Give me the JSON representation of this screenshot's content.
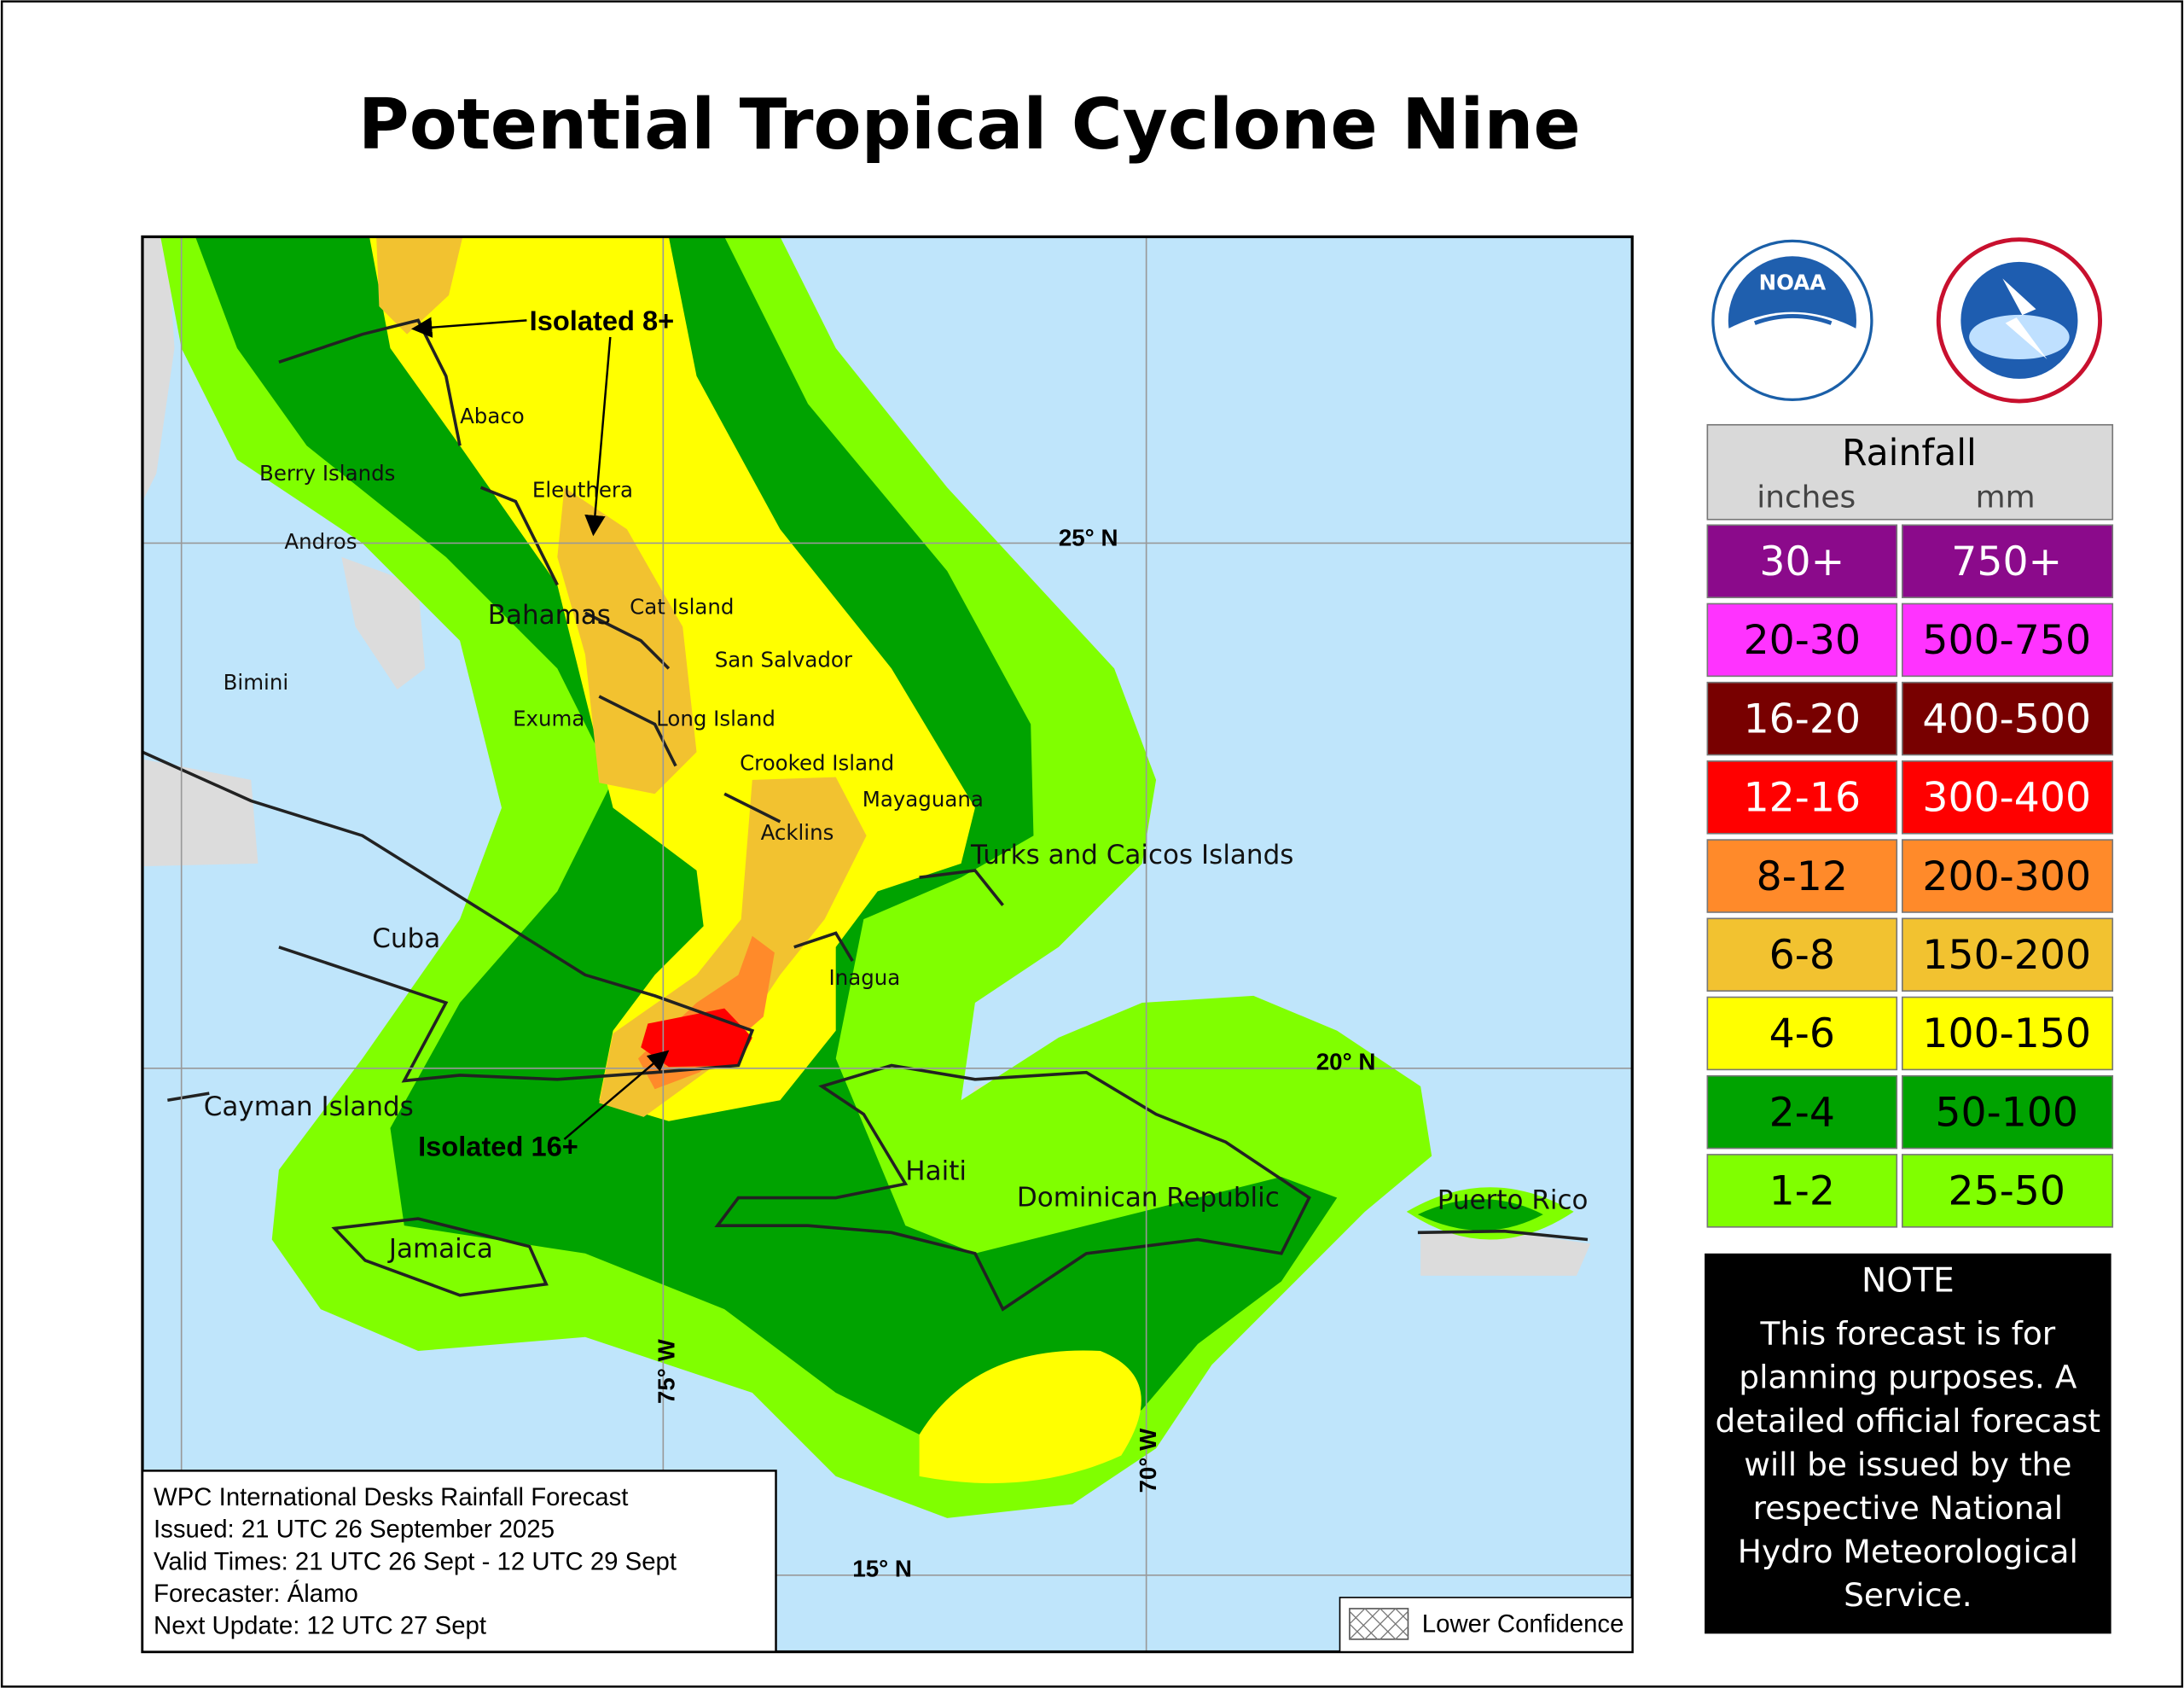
{
  "title": "Potential Tropical Cyclone Nine",
  "map": {
    "places": [
      "Abaco",
      "Berry Islands",
      "Eleuthera",
      "Andros",
      "Bahamas",
      "Cat Island",
      "San Salvador",
      "Bimini",
      "Exuma",
      "Long Island",
      "Crooked Island",
      "Mayaguana",
      "Acklins",
      "Turks and Caicos Islands",
      "Cuba",
      "Inagua",
      "Cayman Islands",
      "Haiti",
      "Dominican Republic",
      "Puerto Rico",
      "Jamaica"
    ],
    "grid_labels": [
      "25° N",
      "20° N",
      "15° N",
      "75° W",
      "70° W"
    ],
    "annotations": [
      "Isolated 8+",
      "Isolated 16+"
    ],
    "info": [
      "WPC International Desks Rainfall Forecast",
      "Issued: 21 UTC 26 September 2025",
      "Valid Times: 21 UTC 26 Sept - 12 UTC 29 Sept",
      "Forecaster: Álamo",
      "Next Update: 12 UTC 27 Sept"
    ],
    "lower_confidence": "Lower Confidence"
  },
  "logos": {
    "noaa": "NOAA"
  },
  "legend": {
    "title": "Rainfall",
    "units": [
      "inches",
      "mm"
    ],
    "rows": [
      {
        "inches": "30+",
        "mm": "750+",
        "color": "#8b0a8b"
      },
      {
        "inches": "20-30",
        "mm": "500-750",
        "color": "#ff33ff"
      },
      {
        "inches": "16-20",
        "mm": "400-500",
        "color": "#780000"
      },
      {
        "inches": "12-16",
        "mm": "300-400",
        "color": "#ff0000"
      },
      {
        "inches": "8-12",
        "mm": "200-300",
        "color": "#ff8a2a"
      },
      {
        "inches": "6-8",
        "mm": "150-200",
        "color": "#f2c230"
      },
      {
        "inches": "4-6",
        "mm": "100-150",
        "color": "#ffff00"
      },
      {
        "inches": "2-4",
        "mm": "50-100",
        "color": "#00a300"
      },
      {
        "inches": "1-2",
        "mm": "25-50",
        "color": "#80ff00"
      }
    ]
  },
  "note": {
    "title": "NOTE",
    "lines": [
      "This forecast is for",
      "planning purposes. A",
      "detailed official forecast",
      "will be issued by the",
      "respective National",
      "Hydro Meteorological",
      "Service."
    ]
  }
}
